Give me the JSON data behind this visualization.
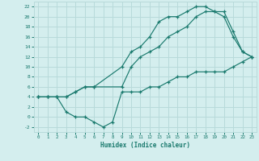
{
  "xlabel": "Humidex (Indice chaleur)",
  "line_color": "#1a7a6e",
  "bg_color": "#d4eeee",
  "grid_color": "#b8dada",
  "xlim": [
    -0.5,
    23.5
  ],
  "ylim": [
    -3,
    23
  ],
  "xticks": [
    0,
    1,
    2,
    3,
    4,
    5,
    6,
    7,
    8,
    9,
    10,
    11,
    12,
    13,
    14,
    15,
    16,
    17,
    18,
    19,
    20,
    21,
    22,
    23
  ],
  "yticks": [
    -2,
    0,
    2,
    4,
    6,
    8,
    10,
    12,
    14,
    16,
    18,
    20,
    22
  ],
  "line1_x": [
    0,
    1,
    2,
    3,
    4,
    5,
    6,
    9,
    10,
    11,
    12,
    13,
    14,
    15,
    16,
    17,
    18,
    19,
    20,
    21,
    22,
    23
  ],
  "line1_y": [
    4,
    4,
    4,
    4,
    5,
    6,
    6,
    10,
    13,
    14,
    16,
    19,
    20,
    20,
    21,
    22,
    22,
    21,
    20,
    16,
    13,
    12
  ],
  "line2_x": [
    0,
    1,
    2,
    3,
    4,
    5,
    6,
    9,
    10,
    11,
    12,
    13,
    14,
    15,
    16,
    17,
    18,
    19,
    20,
    21,
    22,
    23
  ],
  "line2_y": [
    4,
    4,
    4,
    4,
    5,
    6,
    6,
    6,
    10,
    12,
    13,
    14,
    16,
    17,
    18,
    20,
    21,
    21,
    21,
    17,
    13,
    12
  ],
  "line3_x": [
    0,
    1,
    2,
    3,
    4,
    5,
    6,
    7,
    8,
    9,
    10,
    11,
    12,
    13,
    14,
    15,
    16,
    17,
    18,
    19,
    20,
    21,
    22,
    23
  ],
  "line3_y": [
    4,
    4,
    4,
    1,
    0,
    0,
    -1,
    -2,
    -1,
    5,
    5,
    5,
    6,
    6,
    7,
    8,
    8,
    9,
    9,
    9,
    9,
    10,
    11,
    12
  ]
}
